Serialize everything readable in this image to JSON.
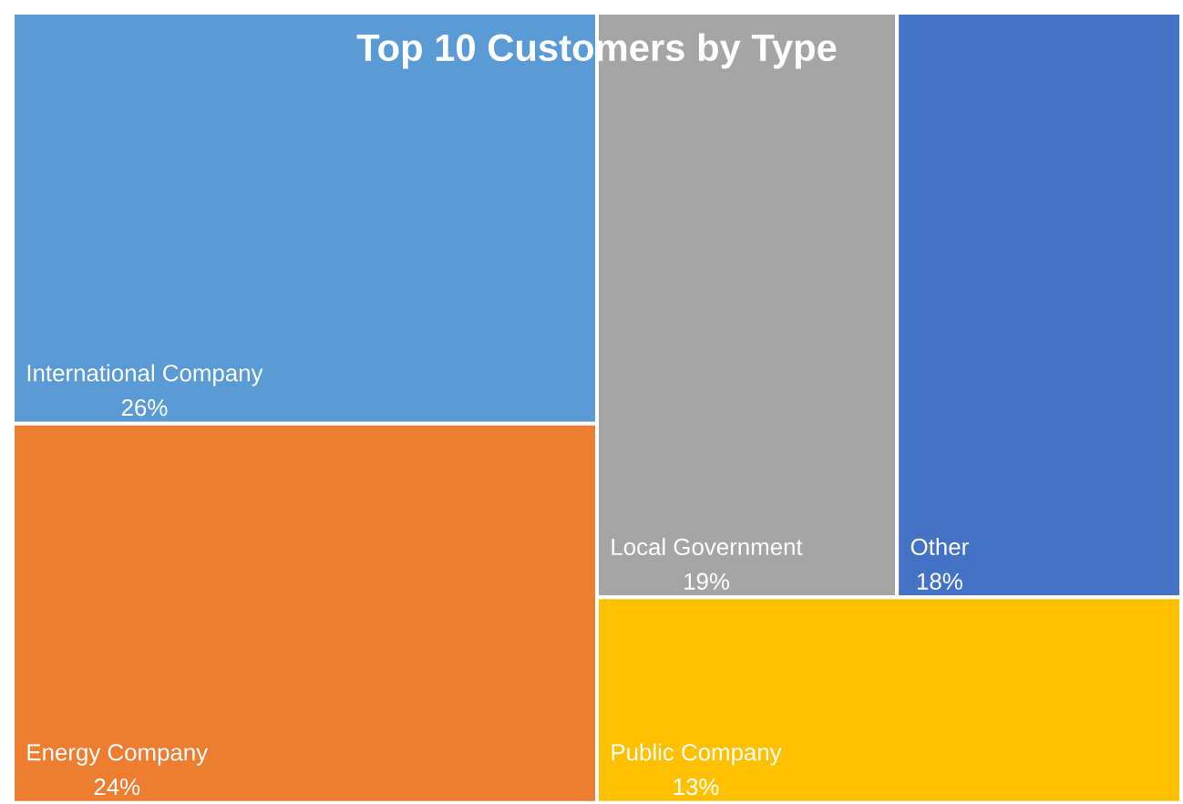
{
  "chart_data": {
    "type": "other",
    "title": "Top 10 Customers by Type",
    "categories": [
      "International Company",
      "Energy Company",
      "Local Government",
      "Other",
      "Public Company"
    ],
    "values": [
      26,
      24,
      19,
      18,
      13
    ],
    "value_labels": [
      "26%",
      "24%",
      "19%",
      "18%",
      "13%"
    ],
    "colors": [
      "#5b9bd5",
      "#ed7d31",
      "#a5a5a5",
      "#4472c4",
      "#ffc000"
    ]
  }
}
